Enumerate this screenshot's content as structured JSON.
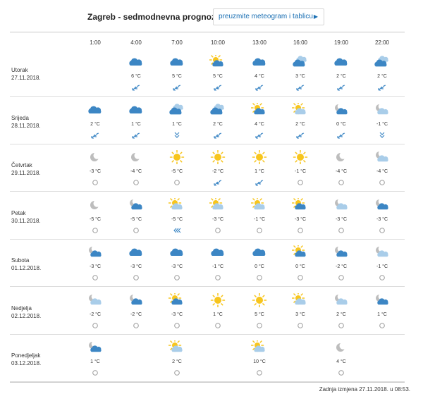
{
  "header": {
    "title": "Zagreb - sedmodnevna prognoza",
    "button_label": "preuzmite meteogram i tablicu"
  },
  "hours": [
    "1:00",
    "4:00",
    "7:00",
    "10:00",
    "13:00",
    "16:00",
    "19:00",
    "22:00"
  ],
  "days": [
    {
      "name": "Utorak",
      "date": "27.11.2018.",
      "cells": [
        null,
        {
          "icon": "cloud",
          "temp": "6 °C",
          "wind": "wind-sw-icon"
        },
        {
          "icon": "cloud",
          "temp": "5 °C",
          "wind": "wind-sw-icon"
        },
        {
          "icon": "sun-cloud",
          "temp": "5 °C",
          "wind": "wind-sw-icon"
        },
        {
          "icon": "cloud",
          "temp": "4 °C",
          "wind": "wind-sw-icon"
        },
        {
          "icon": "cloud-dark",
          "temp": "3 °C",
          "wind": "wind-sw-icon"
        },
        {
          "icon": "cloud",
          "temp": "2 °C",
          "wind": "wind-sw-icon"
        },
        {
          "icon": "cloud-dark",
          "temp": "2 °C",
          "wind": "wind-sw-icon"
        }
      ]
    },
    {
      "name": "Srijeda",
      "date": "28.11.2018.",
      "cells": [
        {
          "icon": "cloud",
          "temp": "2 °C",
          "wind": "wind-sw-icon"
        },
        {
          "icon": "cloud",
          "temp": "1 °C",
          "wind": "wind-sw-icon"
        },
        {
          "icon": "cloud-dark",
          "temp": "1 °C",
          "wind": "wind-s-icon"
        },
        {
          "icon": "cloud-dark",
          "temp": "2 °C",
          "wind": "wind-sw-icon"
        },
        {
          "icon": "sun-cloud",
          "temp": "4 °C",
          "wind": "wind-sw-icon"
        },
        {
          "icon": "sun-cloud-light",
          "temp": "2 °C",
          "wind": "wind-sw-icon"
        },
        {
          "icon": "moon-cloud",
          "temp": "0 °C",
          "wind": "wind-sw-icon"
        },
        {
          "icon": "moon-cloud-light",
          "temp": "-1 °C",
          "wind": "wind-s-icon"
        }
      ]
    },
    {
      "name": "Četvrtak",
      "date": "29.11.2018.",
      "cells": [
        {
          "icon": "moon",
          "temp": "-3 °C",
          "wind": "calm-icon"
        },
        {
          "icon": "moon",
          "temp": "-4 °C",
          "wind": "calm-icon"
        },
        {
          "icon": "sun",
          "temp": "-5 °C",
          "wind": "calm-icon"
        },
        {
          "icon": "sun",
          "temp": "-2 °C",
          "wind": "wind-sw-icon"
        },
        {
          "icon": "sun",
          "temp": "1 °C",
          "wind": "wind-sw-icon"
        },
        {
          "icon": "sun",
          "temp": "-1 °C",
          "wind": "calm-icon"
        },
        {
          "icon": "moon",
          "temp": "-4 °C",
          "wind": "calm-icon"
        },
        {
          "icon": "moon-cloud-light",
          "temp": "-4 °C",
          "wind": "calm-icon"
        }
      ]
    },
    {
      "name": "Petak",
      "date": "30.11.2018.",
      "cells": [
        {
          "icon": "moon",
          "temp": "-5 °C",
          "wind": "calm-icon"
        },
        {
          "icon": "moon-cloud",
          "temp": "-5 °C",
          "wind": "calm-icon"
        },
        {
          "icon": "sun-cloud-light",
          "temp": "-5 °C",
          "wind": "wind-w-icon"
        },
        {
          "icon": "sun-cloud-light",
          "temp": "-3 °C",
          "wind": "calm-icon"
        },
        {
          "icon": "sun-cloud-light",
          "temp": "-1 °C",
          "wind": "calm-icon"
        },
        {
          "icon": "sun-cloud",
          "temp": "-3 °C",
          "wind": "calm-icon"
        },
        {
          "icon": "moon-cloud-light",
          "temp": "-3 °C",
          "wind": "calm-icon"
        },
        {
          "icon": "moon-cloud",
          "temp": "-3 °C",
          "wind": "calm-icon"
        }
      ]
    },
    {
      "name": "Subota",
      "date": "01.12.2018.",
      "cells": [
        {
          "icon": "moon-cloud",
          "temp": "-3 °C",
          "wind": "calm-icon"
        },
        {
          "icon": "cloud",
          "temp": "-3 °C",
          "wind": "calm-icon"
        },
        {
          "icon": "cloud",
          "temp": "-3 °C",
          "wind": "calm-icon"
        },
        {
          "icon": "cloud",
          "temp": "-1 °C",
          "wind": "calm-icon"
        },
        {
          "icon": "cloud",
          "temp": "0 °C",
          "wind": "calm-icon"
        },
        {
          "icon": "sun-cloud",
          "temp": "0 °C",
          "wind": "calm-icon"
        },
        {
          "icon": "moon-cloud",
          "temp": "-2 °C",
          "wind": "calm-icon"
        },
        {
          "icon": "moon-cloud-light",
          "temp": "-1 °C",
          "wind": "calm-icon"
        }
      ]
    },
    {
      "name": "Nedjelja",
      "date": "02.12.2018.",
      "cells": [
        {
          "icon": "moon-cloud-light",
          "temp": "-2 °C",
          "wind": "calm-icon"
        },
        {
          "icon": "moon-cloud",
          "temp": "-2 °C",
          "wind": "calm-icon"
        },
        {
          "icon": "sun-cloud",
          "temp": "-3 °C",
          "wind": "calm-icon"
        },
        {
          "icon": "sun",
          "temp": "1 °C",
          "wind": "calm-icon"
        },
        {
          "icon": "sun",
          "temp": "5 °C",
          "wind": "calm-icon"
        },
        {
          "icon": "sun-cloud-light",
          "temp": "3 °C",
          "wind": "calm-icon"
        },
        {
          "icon": "moon-cloud-light",
          "temp": "2 °C",
          "wind": "calm-icon"
        },
        {
          "icon": "moon-cloud",
          "temp": "1 °C",
          "wind": "calm-icon"
        }
      ]
    },
    {
      "name": "Ponedjeljak",
      "date": "03.12.2018.",
      "cells": [
        {
          "icon": "moon-cloud",
          "temp": "1 °C",
          "wind": "calm-icon"
        },
        null,
        {
          "icon": "sun-cloud-light",
          "temp": "2 °C",
          "wind": "calm-icon"
        },
        null,
        {
          "icon": "sun-cloud-light",
          "temp": "10 °C",
          "wind": "calm-icon"
        },
        null,
        {
          "icon": "moon",
          "temp": "4 °C",
          "wind": "calm-icon"
        },
        null
      ]
    }
  ],
  "footer": {
    "last_change": "Zadnja izmjena 27.11.2018. u 08:53."
  },
  "colors": {
    "cloud": "#3c86c4",
    "cloud_light": "#a9cde9",
    "sun": "#f7c51d",
    "moon": "#bdbdbd",
    "wind": "#3c86c4",
    "accent": "#1a6fb3"
  }
}
